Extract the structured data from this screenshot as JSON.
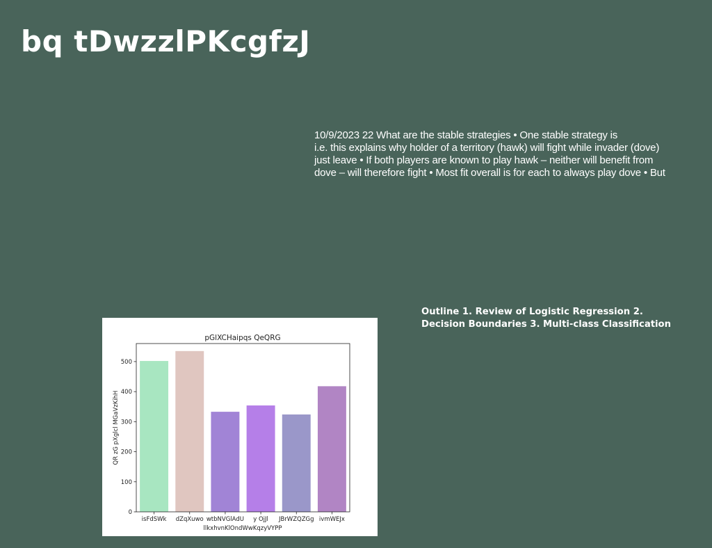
{
  "slide": {
    "title": "bq tDwzzlPKcgfzJ",
    "body_lines": [
      "10/9/2023 22 What are the stable strategies • One stable strategy is",
      "i.e. this explains why holder of a territory (hawk) will fight while invader (dove)",
      "just leave • If both players are known to play hawk – neither will benefit from",
      "dove – will therefore fight • Most fit overall is for each to always play dove • But"
    ],
    "outline_lines": [
      "Outline 1. Review of Logistic Regression 2.",
      "Decision Boundaries 3. Multi-class Classification"
    ],
    "background_color": "#49645a"
  },
  "chart_data": {
    "type": "bar",
    "title": "pGlXCHaipqs QeQRG",
    "xlabel": "llkxhvnKlOndWwKqzyVYPP",
    "ylabel": "QR zG pXglcl MGaVzKihH",
    "categories": [
      "isFdSWk",
      "dZqXuwo",
      "wtbNVGlAdU",
      "y OjJl",
      "JBrWZQZGg",
      "ivmWEJx"
    ],
    "values": [
      502,
      535,
      333,
      354,
      324,
      418
    ],
    "colors": [
      "#a8e6c1",
      "#e0c6c0",
      "#a184d6",
      "#b57fe8",
      "#9a97c9",
      "#b185c4"
    ],
    "ylim": [
      0,
      560
    ],
    "yticks": [
      0,
      100,
      200,
      300,
      400,
      500
    ],
    "grid": false,
    "legend": false
  }
}
